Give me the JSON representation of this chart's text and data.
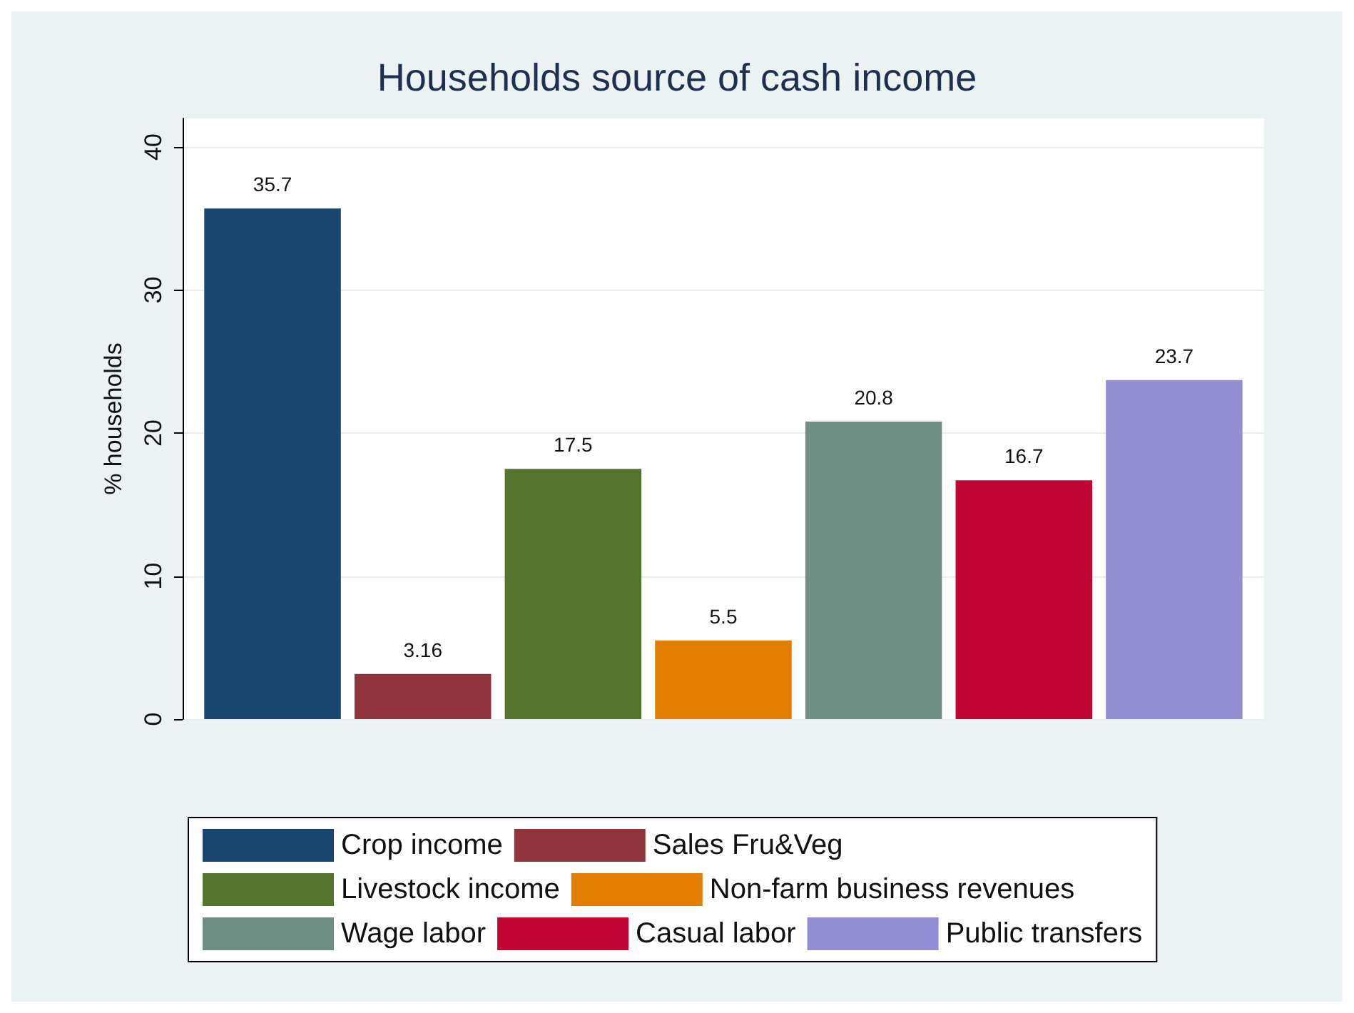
{
  "chart_data": {
    "type": "bar",
    "title": "Households source of cash income",
    "ylabel": "% households",
    "categories": [
      null
    ],
    "series": [
      {
        "name": "Crop income",
        "color": "#1a476f",
        "values": [
          35.7
        ]
      },
      {
        "name": "Sales Fru&Veg",
        "color": "#90353b",
        "values": [
          3.16
        ]
      },
      {
        "name": "Livestock income",
        "color": "#55752f",
        "values": [
          17.5
        ]
      },
      {
        "name": "Non-farm business revenues",
        "color": "#e37e00",
        "values": [
          5.5
        ]
      },
      {
        "name": "Wage labor",
        "color": "#6e8e84",
        "values": [
          20.8
        ]
      },
      {
        "name": "Casual labor",
        "color": "#c10534",
        "values": [
          16.7
        ]
      },
      {
        "name": "Public transfers",
        "color": "#938dd2",
        "values": [
          23.7
        ]
      }
    ],
    "ylim": [
      0,
      42
    ],
    "yticks": [
      0,
      10,
      20,
      30,
      40
    ],
    "grid": "y",
    "legend": "bottom",
    "data_labels": true
  }
}
